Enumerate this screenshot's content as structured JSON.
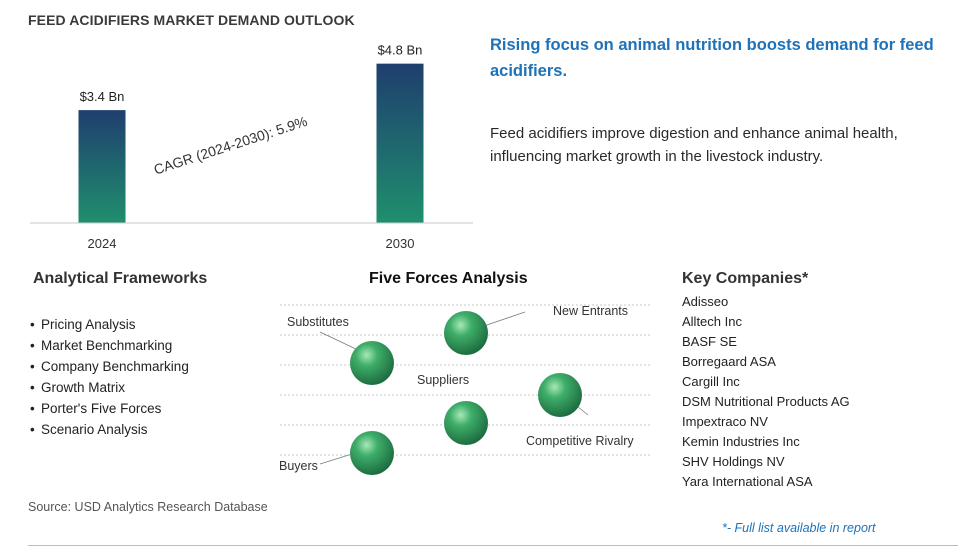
{
  "chart_title": "FEED ACIDIFIERS MARKET DEMAND OUTLOOK",
  "chart_data": {
    "type": "bar",
    "categories": [
      "2024",
      "2030"
    ],
    "values": [
      3.4,
      4.8
    ],
    "value_labels": [
      "$3.4 Bn",
      "$4.8 Bn"
    ],
    "annotation": "CAGR (2024-2030):  5.9%",
    "ylim": [
      0,
      5.0
    ],
    "bar_color_top": "#1f3e6e",
    "bar_color_bottom": "#1f8f6e"
  },
  "headline": "Rising focus on animal nutrition boosts demand for feed acidifiers.",
  "description": "Feed acidifiers improve digestion and enhance animal health, influencing market growth in the livestock industry.",
  "analytical_frameworks": {
    "title": "Analytical Frameworks",
    "items": [
      "Pricing Analysis",
      "Market Benchmarking",
      "Company Benchmarking",
      "Growth Matrix",
      "Porter's Five Forces",
      "Scenario Analysis"
    ]
  },
  "five_forces": {
    "title": "Five Forces Analysis",
    "labels": {
      "substitutes": "Substitutes",
      "new_entrants": "New Entrants",
      "suppliers": "Suppliers",
      "competitive_rivalry": "Competitive Rivalry",
      "buyers": "Buyers"
    },
    "sphere_color": "#2e8b57"
  },
  "key_companies": {
    "title": "Key Companies*",
    "items": [
      "Adisseo",
      "Alltech Inc",
      "BASF SE",
      "Borregaard ASA",
      "Cargill Inc",
      "DSM Nutritional Products AG",
      "Impextraco NV",
      "Kemin Industries Inc",
      "SHV Holdings NV",
      "Yara International ASA"
    ]
  },
  "source": "Source: USD Analytics Research Database",
  "footnote": "*- Full list available in report"
}
